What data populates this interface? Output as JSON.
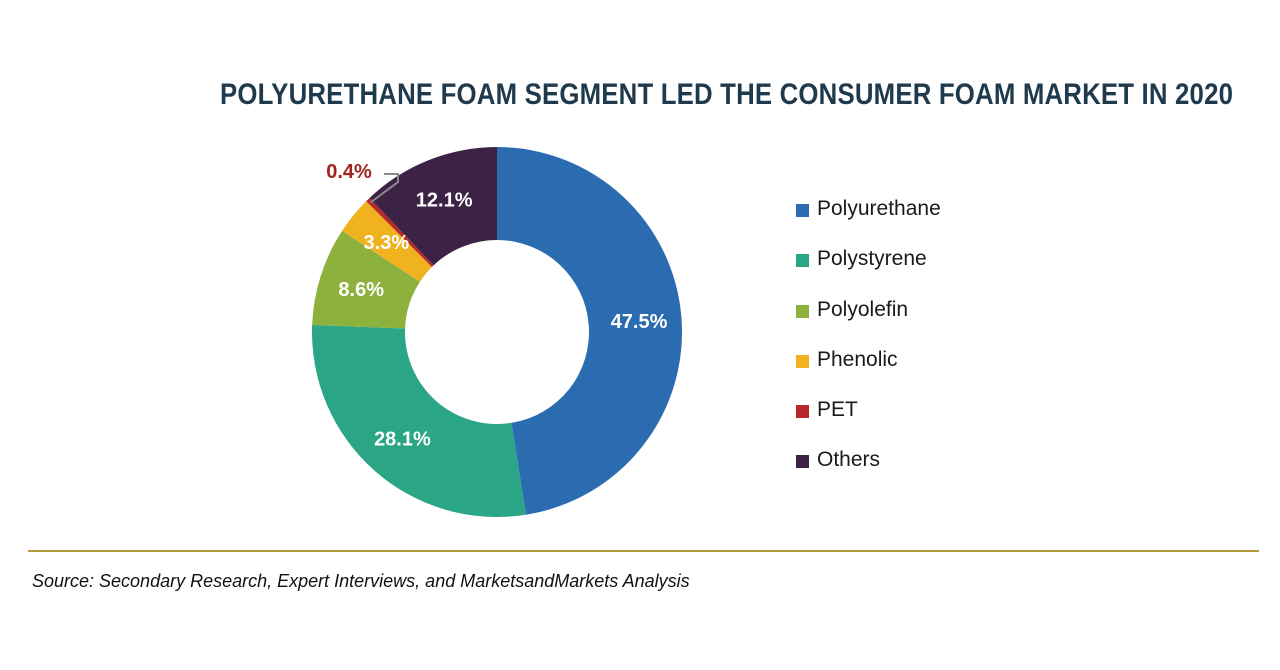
{
  "chart_data": {
    "type": "pie",
    "variant": "donut",
    "title": "POLYURETHANE FOAM SEGMENT LED THE CONSUMER FOAM MARKET IN 2020",
    "labels": [
      "Polyurethane",
      "Polystyrene",
      "Polyolefin",
      "Phenolic",
      "PET",
      "Others"
    ],
    "values": [
      47.5,
      28.1,
      8.6,
      3.3,
      0.4,
      12.1
    ],
    "data_labels": [
      "47.5%",
      "28.1%",
      "8.6%",
      "3.3%",
      "0.4%",
      "12.1%"
    ],
    "colors": [
      "#2b6cb0",
      "#2aa586",
      "#8cb13d",
      "#f0b21e",
      "#b8282a",
      "#3c2346"
    ],
    "label_colors": [
      "#ffffff",
      "#ffffff",
      "#ffffff",
      "#ffffff",
      "#a1231f",
      "#ffffff"
    ],
    "legend_position": "right"
  },
  "footer": {
    "source": "Source: Secondary Research, Expert Interviews, and MarketsandMarkets Analysis"
  }
}
